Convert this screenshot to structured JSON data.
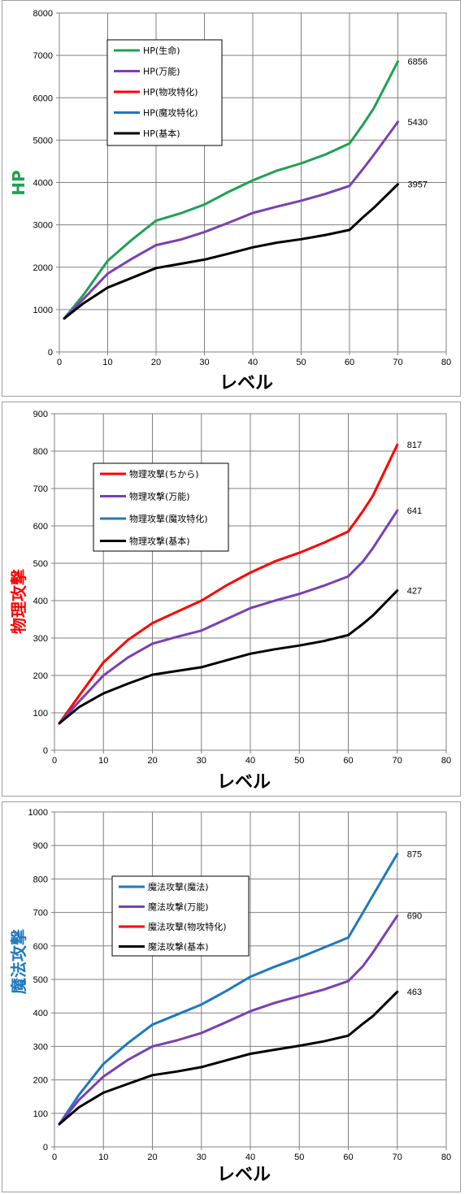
{
  "chart_data": [
    {
      "type": "line",
      "xlabel": "レベル",
      "ylabel": "HP",
      "ylabel_color": "#1fa152",
      "xlim": [
        0,
        80
      ],
      "ylim": [
        0,
        8000
      ],
      "xticks": [
        "0",
        "10",
        "20",
        "30",
        "40",
        "50",
        "60",
        "70",
        "80"
      ],
      "yticks": [
        "0",
        "1000",
        "2000",
        "3000",
        "4000",
        "5000",
        "6000",
        "7000",
        "8000"
      ],
      "grid": true,
      "legend_position": "upper-left",
      "series": [
        {
          "name": "HP(生命)",
          "color": "#1fa152",
          "end_label": "6856",
          "points": [
            [
              1,
              790
            ],
            [
              5,
              1350
            ],
            [
              10,
              2150
            ],
            [
              15,
              2650
            ],
            [
              20,
              3100
            ],
            [
              25,
              3270
            ],
            [
              30,
              3480
            ],
            [
              35,
              3780
            ],
            [
              40,
              4050
            ],
            [
              45,
              4280
            ],
            [
              50,
              4450
            ],
            [
              55,
              4660
            ],
            [
              60,
              4920
            ],
            [
              63,
              5400
            ],
            [
              65,
              5750
            ],
            [
              70,
              6856
            ]
          ]
        },
        {
          "name": "HP(万能)",
          "color": "#7b3fb3",
          "end_label": "5430",
          "points": [
            [
              1,
              790
            ],
            [
              5,
              1250
            ],
            [
              10,
              1850
            ],
            [
              15,
              2200
            ],
            [
              20,
              2520
            ],
            [
              25,
              2650
            ],
            [
              30,
              2830
            ],
            [
              35,
              3050
            ],
            [
              40,
              3280
            ],
            [
              45,
              3430
            ],
            [
              50,
              3570
            ],
            [
              55,
              3730
            ],
            [
              60,
              3920
            ],
            [
              63,
              4350
            ],
            [
              65,
              4650
            ],
            [
              70,
              5430
            ]
          ]
        },
        {
          "name": "HP(物攻特化)",
          "color": "#ff0000",
          "end_label": "",
          "points": []
        },
        {
          "name": "HP(魔攻特化)",
          "color": "#1f78c0",
          "end_label": "",
          "points": []
        },
        {
          "name": "HP(基本)",
          "color": "#000000",
          "end_label": "3957",
          "points": [
            [
              1,
              790
            ],
            [
              5,
              1150
            ],
            [
              10,
              1520
            ],
            [
              15,
              1750
            ],
            [
              20,
              1980
            ],
            [
              25,
              2080
            ],
            [
              30,
              2180
            ],
            [
              35,
              2320
            ],
            [
              40,
              2470
            ],
            [
              45,
              2580
            ],
            [
              50,
              2660
            ],
            [
              55,
              2760
            ],
            [
              60,
              2880
            ],
            [
              63,
              3200
            ],
            [
              65,
              3400
            ],
            [
              70,
              3957
            ]
          ]
        }
      ]
    },
    {
      "type": "line",
      "xlabel": "レベル",
      "ylabel": "物理攻撃",
      "ylabel_color": "#ff0000",
      "xlim": [
        0,
        80
      ],
      "ylim": [
        0,
        900
      ],
      "xticks": [
        "0",
        "10",
        "20",
        "30",
        "40",
        "50",
        "60",
        "70",
        "80"
      ],
      "yticks": [
        "0",
        "100",
        "200",
        "300",
        "400",
        "500",
        "600",
        "700",
        "800",
        "900"
      ],
      "grid": true,
      "legend_position": "upper-left",
      "series": [
        {
          "name": "物理攻撃(ちから)",
          "color": "#ff0000",
          "end_label": "817",
          "points": [
            [
              1,
              72
            ],
            [
              5,
              145
            ],
            [
              10,
              235
            ],
            [
              15,
              295
            ],
            [
              20,
              340
            ],
            [
              25,
              370
            ],
            [
              30,
              400
            ],
            [
              35,
              440
            ],
            [
              40,
              475
            ],
            [
              45,
              505
            ],
            [
              50,
              528
            ],
            [
              55,
              555
            ],
            [
              60,
              585
            ],
            [
              63,
              640
            ],
            [
              65,
              680
            ],
            [
              70,
              817
            ]
          ]
        },
        {
          "name": "物理攻撃(万能)",
          "color": "#7b3fb3",
          "end_label": "641",
          "points": [
            [
              1,
              72
            ],
            [
              5,
              130
            ],
            [
              10,
              200
            ],
            [
              15,
              248
            ],
            [
              20,
              285
            ],
            [
              25,
              303
            ],
            [
              30,
              320
            ],
            [
              35,
              350
            ],
            [
              40,
              380
            ],
            [
              45,
              400
            ],
            [
              50,
              418
            ],
            [
              55,
              440
            ],
            [
              60,
              465
            ],
            [
              63,
              505
            ],
            [
              65,
              540
            ],
            [
              70,
              641
            ]
          ]
        },
        {
          "name": "物理攻撃(魔攻特化)",
          "color": "#1f78c0",
          "end_label": "",
          "points": []
        },
        {
          "name": "物理攻撃(基本)",
          "color": "#000000",
          "end_label": "427",
          "points": [
            [
              1,
              72
            ],
            [
              5,
              115
            ],
            [
              10,
              152
            ],
            [
              15,
              178
            ],
            [
              20,
              202
            ],
            [
              25,
              212
            ],
            [
              30,
              222
            ],
            [
              35,
              240
            ],
            [
              40,
              258
            ],
            [
              45,
              270
            ],
            [
              50,
              280
            ],
            [
              55,
              292
            ],
            [
              60,
              308
            ],
            [
              63,
              338
            ],
            [
              65,
              360
            ],
            [
              70,
              427
            ]
          ]
        }
      ]
    },
    {
      "type": "line",
      "xlabel": "レベル",
      "ylabel": "魔法攻撃",
      "ylabel_color": "#1f78c0",
      "xlim": [
        0,
        80
      ],
      "ylim": [
        0,
        1000
      ],
      "xticks": [
        "0",
        "10",
        "20",
        "30",
        "40",
        "50",
        "60",
        "70",
        "80"
      ],
      "yticks": [
        "0",
        "100",
        "200",
        "300",
        "400",
        "500",
        "600",
        "700",
        "800",
        "900",
        "1000"
      ],
      "grid": true,
      "legend_position": "upper-left",
      "series": [
        {
          "name": "魔法攻撃(魔法)",
          "color": "#1f78c0",
          "end_label": "875",
          "points": [
            [
              1,
              68
            ],
            [
              5,
              155
            ],
            [
              10,
              248
            ],
            [
              15,
              310
            ],
            [
              20,
              365
            ],
            [
              25,
              395
            ],
            [
              30,
              425
            ],
            [
              35,
              465
            ],
            [
              40,
              508
            ],
            [
              45,
              538
            ],
            [
              50,
              565
            ],
            [
              55,
              595
            ],
            [
              60,
              625
            ],
            [
              63,
              700
            ],
            [
              65,
              750
            ],
            [
              70,
              875
            ]
          ]
        },
        {
          "name": "魔法攻撃(万能)",
          "color": "#7b3fb3",
          "end_label": "690",
          "points": [
            [
              1,
              68
            ],
            [
              5,
              140
            ],
            [
              10,
              210
            ],
            [
              15,
              260
            ],
            [
              20,
              300
            ],
            [
              25,
              318
            ],
            [
              30,
              340
            ],
            [
              35,
              372
            ],
            [
              40,
              405
            ],
            [
              45,
              430
            ],
            [
              50,
              450
            ],
            [
              55,
              470
            ],
            [
              60,
              495
            ],
            [
              63,
              540
            ],
            [
              65,
              580
            ],
            [
              70,
              690
            ]
          ]
        },
        {
          "name": "魔法攻撃(物攻特化)",
          "color": "#ff0000",
          "end_label": "",
          "points": []
        },
        {
          "name": "魔法攻撃(基本)",
          "color": "#000000",
          "end_label": "463",
          "points": [
            [
              1,
              68
            ],
            [
              5,
              118
            ],
            [
              10,
              162
            ],
            [
              15,
              188
            ],
            [
              20,
              214
            ],
            [
              25,
              225
            ],
            [
              30,
              238
            ],
            [
              35,
              258
            ],
            [
              40,
              278
            ],
            [
              45,
              290
            ],
            [
              50,
              302
            ],
            [
              55,
              315
            ],
            [
              60,
              332
            ],
            [
              63,
              368
            ],
            [
              65,
              390
            ],
            [
              70,
              463
            ]
          ]
        }
      ]
    }
  ]
}
